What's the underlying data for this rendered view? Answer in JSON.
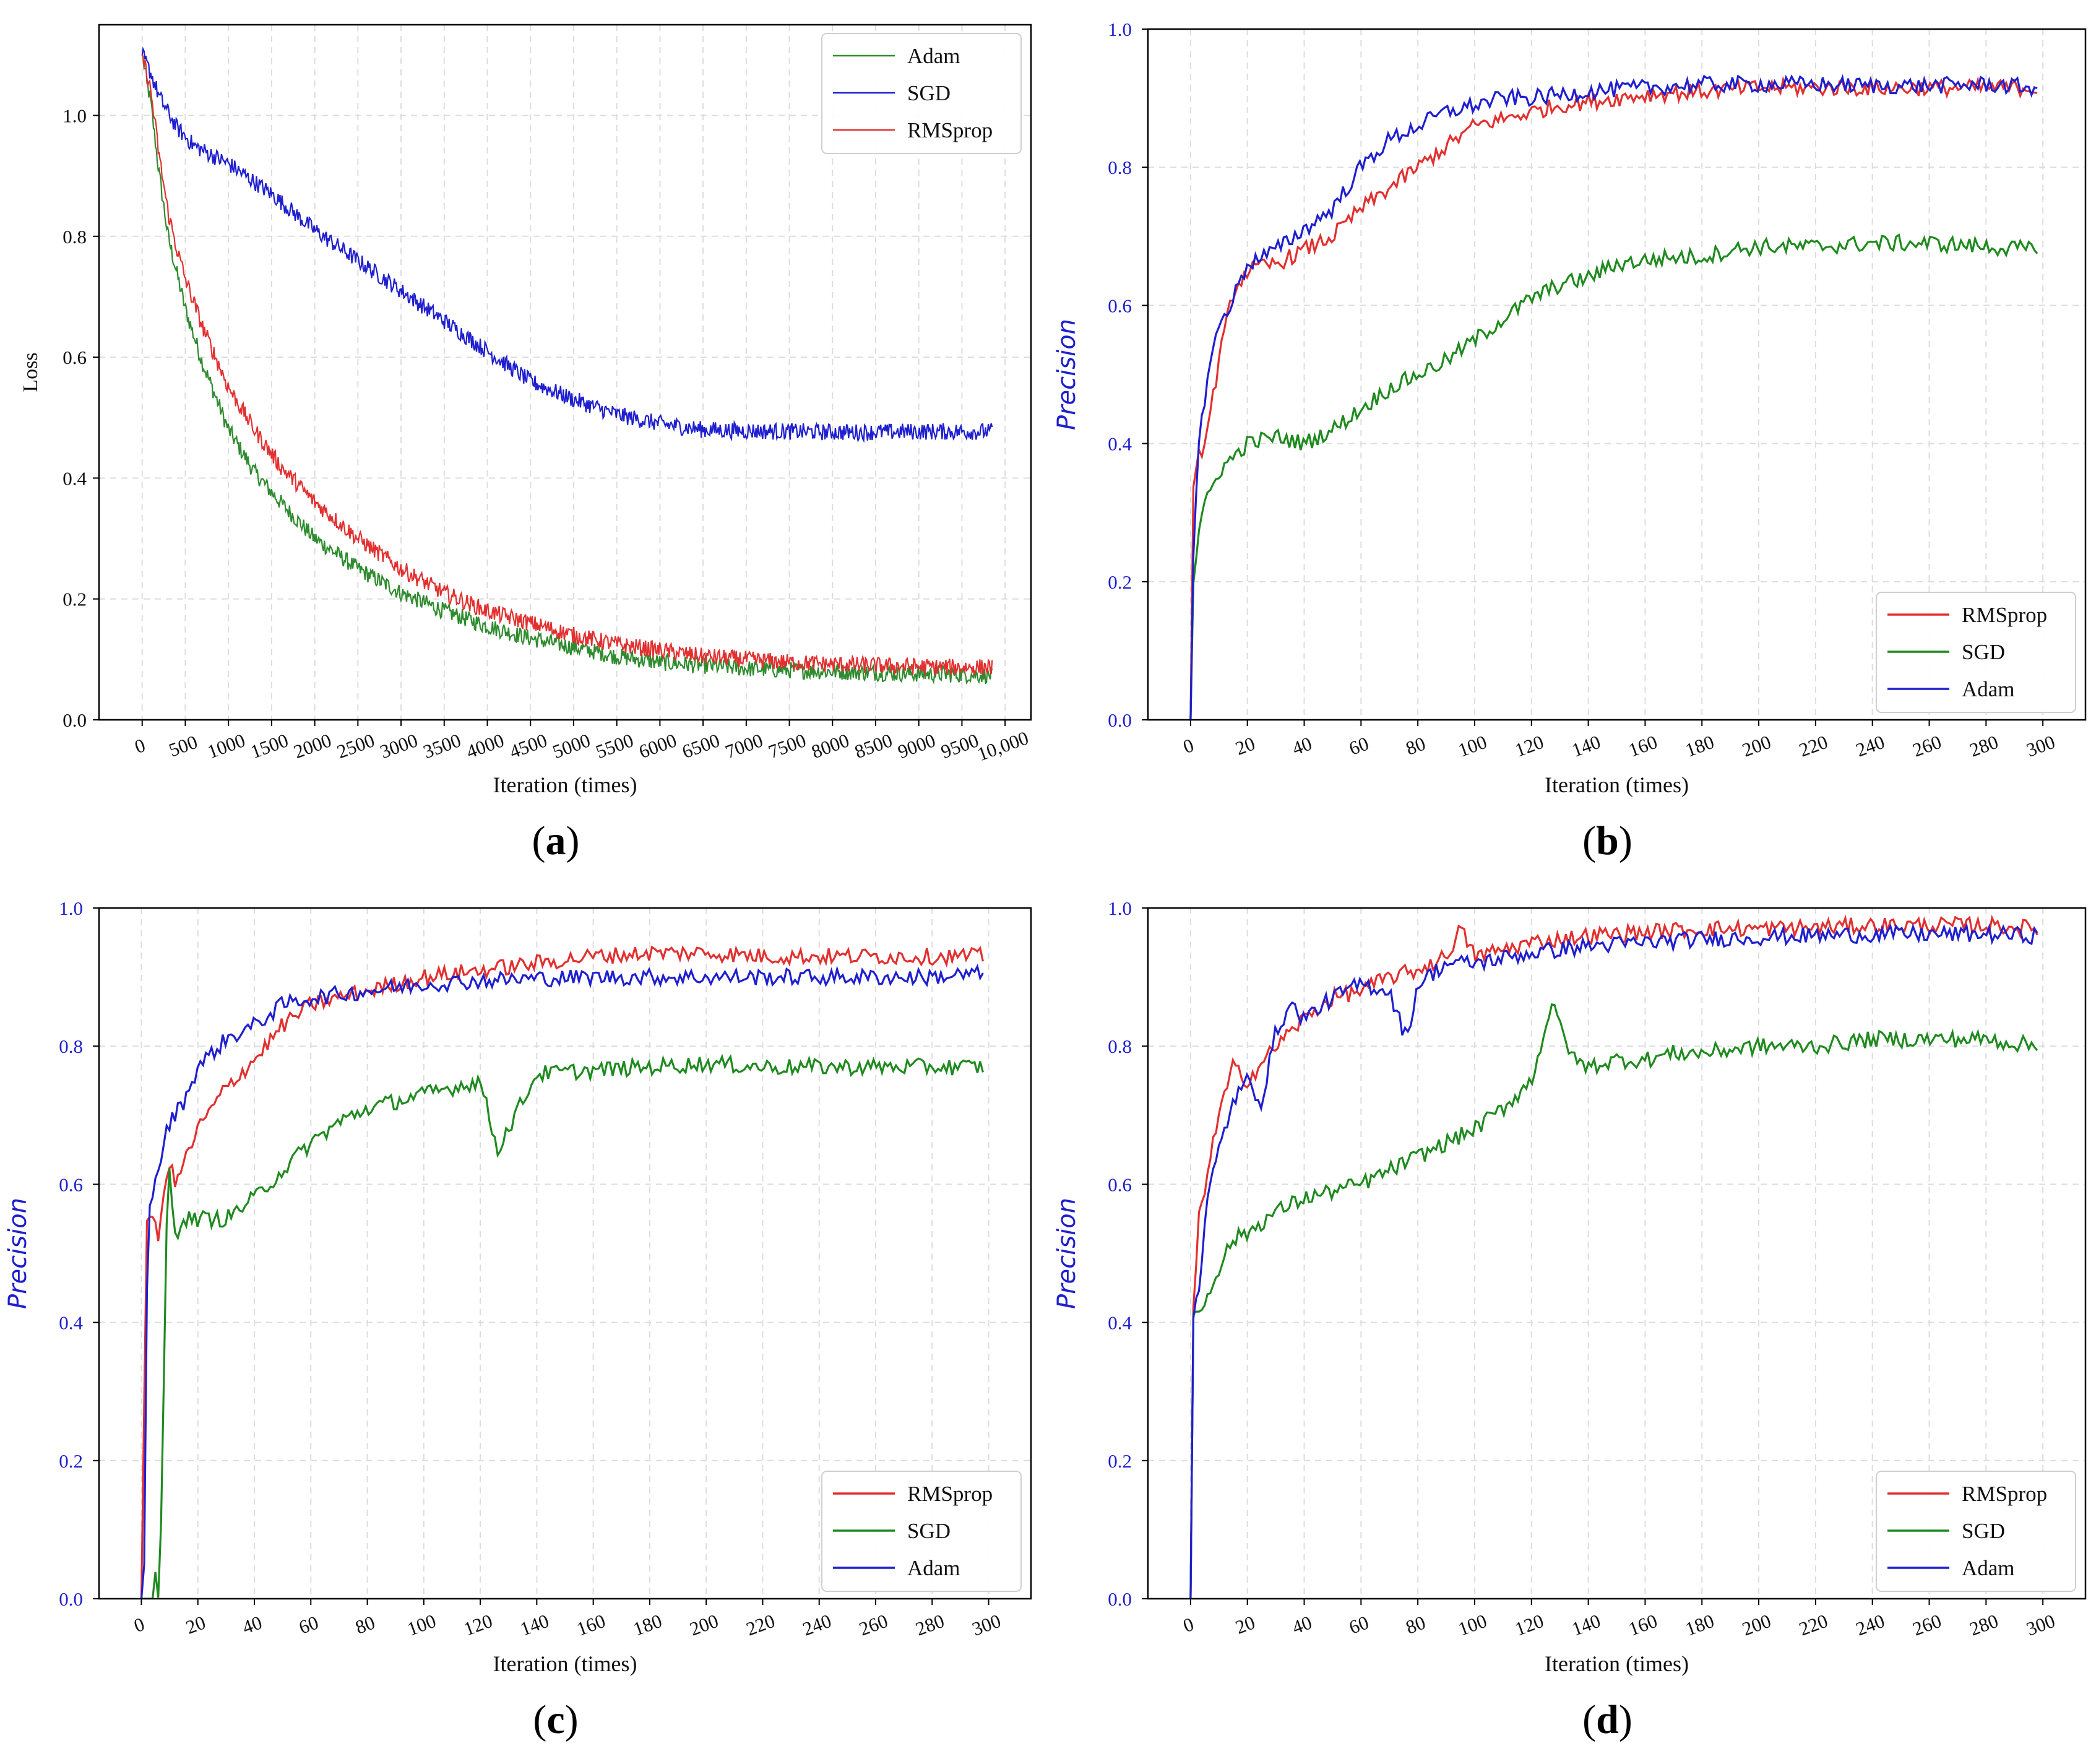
{
  "colors": {
    "adam_a": "#2e8b2e",
    "sgd_a": "#1f1fcf",
    "rmsprop": "#e23030",
    "sgd_green": "#1f8a1f",
    "adam_blue": "#1f1fcf",
    "precision_label": "#1f1fcf",
    "grid": "#dddddd"
  },
  "chart_data": [
    {
      "id": "a",
      "caption_open": "(",
      "caption_letter": "a",
      "caption_close": ")",
      "type": "line",
      "xlabel": "Iteration (times)",
      "ylabel": "Loss",
      "ylabel_style": "plain",
      "xlim": [
        -500,
        10300
      ],
      "ylim": [
        0.0,
        1.15
      ],
      "x_ticks": [
        0,
        500,
        1000,
        1500,
        2000,
        2500,
        3000,
        3500,
        4000,
        4500,
        5000,
        5500,
        6000,
        6500,
        7000,
        7500,
        8000,
        8500,
        9000,
        9500,
        10000
      ],
      "x_tick_labels": [
        "0",
        "500",
        "1000",
        "1500",
        "2000",
        "2500",
        "3000",
        "3500",
        "4000",
        "4500",
        "5000",
        "5500",
        "6000",
        "6500",
        "7000",
        "7500",
        "8000",
        "8500",
        "9000",
        "9500",
        "10,000"
      ],
      "y_ticks": [
        0.0,
        0.2,
        0.4,
        0.6,
        0.8,
        1.0
      ],
      "y_tick_labels": [
        "0.0",
        "0.2",
        "0.4",
        "0.6",
        "0.8",
        "1.0"
      ],
      "legend_position": "top-right",
      "series": [
        {
          "name": "Adam",
          "color_key": "adam_a",
          "x": [
            0,
            100,
            200,
            300,
            400,
            500,
            700,
            1000,
            1300,
            1600,
            2000,
            2500,
            3000,
            3500,
            4000,
            4500,
            5000,
            5500,
            6000,
            6500,
            7000,
            7500,
            8000,
            8500,
            9000,
            9500,
            9850
          ],
          "values": [
            1.1,
            1.02,
            0.9,
            0.8,
            0.74,
            0.68,
            0.59,
            0.48,
            0.41,
            0.36,
            0.3,
            0.25,
            0.21,
            0.18,
            0.155,
            0.135,
            0.12,
            0.105,
            0.095,
            0.09,
            0.085,
            0.082,
            0.08,
            0.078,
            0.076,
            0.075,
            0.074
          ]
        },
        {
          "name": "SGD",
          "color_key": "sgd_a",
          "x": [
            0,
            100,
            200,
            400,
            600,
            1000,
            1500,
            2000,
            2500,
            3000,
            3500,
            4000,
            4500,
            5000,
            5500,
            6000,
            6500,
            7000,
            7500,
            8000,
            8500,
            9000,
            9500,
            9850
          ],
          "values": [
            1.1,
            1.07,
            1.03,
            0.98,
            0.95,
            0.92,
            0.87,
            0.81,
            0.76,
            0.71,
            0.66,
            0.61,
            0.56,
            0.53,
            0.505,
            0.49,
            0.48,
            0.478,
            0.477,
            0.476,
            0.476,
            0.477,
            0.477,
            0.477
          ]
        },
        {
          "name": "RMSprop",
          "color_key": "rmsprop",
          "x": [
            0,
            100,
            200,
            300,
            400,
            500,
            700,
            1000,
            1300,
            1600,
            2000,
            2500,
            3000,
            3500,
            4000,
            4500,
            5000,
            5500,
            6000,
            6500,
            7000,
            7500,
            8000,
            8500,
            9000,
            9500,
            9850
          ],
          "values": [
            1.1,
            1.04,
            0.93,
            0.84,
            0.78,
            0.73,
            0.65,
            0.55,
            0.48,
            0.42,
            0.36,
            0.3,
            0.25,
            0.21,
            0.18,
            0.16,
            0.14,
            0.125,
            0.115,
            0.105,
            0.1,
            0.095,
            0.092,
            0.09,
            0.088,
            0.087,
            0.087
          ]
        }
      ]
    },
    {
      "id": "b",
      "caption_open": "(",
      "caption_letter": "b",
      "caption_close": ")",
      "type": "line",
      "xlabel": "Iteration (times)",
      "ylabel": "Precision",
      "ylabel_style": "blue-italic",
      "xlim": [
        -15,
        315
      ],
      "ylim": [
        0.0,
        1.0
      ],
      "x_ticks": [
        0,
        20,
        40,
        60,
        80,
        100,
        120,
        140,
        160,
        180,
        200,
        220,
        240,
        260,
        280,
        300
      ],
      "x_tick_labels": [
        "0",
        "20",
        "40",
        "60",
        "80",
        "100",
        "120",
        "140",
        "160",
        "180",
        "200",
        "220",
        "240",
        "260",
        "280",
        "300"
      ],
      "y_ticks": [
        0.0,
        0.2,
        0.4,
        0.6,
        0.8,
        1.0
      ],
      "y_tick_labels": [
        "0.0",
        "0.2",
        "0.4",
        "0.6",
        "0.8",
        "1.0"
      ],
      "legend_position": "bottom-right",
      "series": [
        {
          "name": "RMSprop",
          "color_key": "rmsprop",
          "x": [
            0,
            1,
            3,
            6,
            10,
            15,
            20,
            30,
            40,
            50,
            60,
            70,
            80,
            90,
            100,
            110,
            120,
            130,
            140,
            150,
            160,
            180,
            200,
            220,
            240,
            260,
            280,
            298
          ],
          "values": [
            0.0,
            0.33,
            0.38,
            0.42,
            0.52,
            0.62,
            0.65,
            0.66,
            0.68,
            0.7,
            0.74,
            0.77,
            0.8,
            0.83,
            0.86,
            0.87,
            0.88,
            0.89,
            0.895,
            0.9,
            0.905,
            0.91,
            0.915,
            0.915,
            0.915,
            0.915,
            0.915,
            0.915
          ]
        },
        {
          "name": "SGD",
          "color_key": "sgd_green",
          "x": [
            0,
            1,
            3,
            6,
            10,
            15,
            20,
            30,
            40,
            50,
            60,
            70,
            80,
            90,
            100,
            110,
            120,
            130,
            140,
            150,
            160,
            170,
            180,
            190,
            200,
            220,
            240,
            260,
            280,
            298
          ],
          "values": [
            0.0,
            0.2,
            0.28,
            0.32,
            0.36,
            0.38,
            0.4,
            0.41,
            0.4,
            0.42,
            0.45,
            0.48,
            0.5,
            0.52,
            0.55,
            0.58,
            0.61,
            0.63,
            0.64,
            0.66,
            0.665,
            0.67,
            0.67,
            0.68,
            0.685,
            0.685,
            0.69,
            0.69,
            0.685,
            0.68
          ]
        },
        {
          "name": "Adam",
          "color_key": "adam_blue",
          "x": [
            0,
            1,
            3,
            6,
            10,
            15,
            20,
            30,
            40,
            50,
            60,
            70,
            80,
            90,
            100,
            110,
            120,
            130,
            140,
            160,
            180,
            200,
            220,
            240,
            260,
            280,
            298
          ],
          "values": [
            0.0,
            0.25,
            0.4,
            0.5,
            0.57,
            0.61,
            0.66,
            0.68,
            0.71,
            0.74,
            0.8,
            0.84,
            0.86,
            0.88,
            0.89,
            0.9,
            0.9,
            0.905,
            0.91,
            0.915,
            0.92,
            0.92,
            0.92,
            0.918,
            0.918,
            0.92,
            0.915
          ]
        }
      ]
    },
    {
      "id": "c",
      "caption_open": "(",
      "caption_letter": "c",
      "caption_close": ")",
      "type": "line",
      "xlabel": "Iteration (times)",
      "ylabel": "Precision",
      "ylabel_style": "blue-italic",
      "xlim": [
        -15,
        315
      ],
      "ylim": [
        0.0,
        1.0
      ],
      "x_ticks": [
        0,
        20,
        40,
        60,
        80,
        100,
        120,
        140,
        160,
        180,
        200,
        220,
        240,
        260,
        280,
        300
      ],
      "x_tick_labels": [
        "0",
        "20",
        "40",
        "60",
        "80",
        "100",
        "120",
        "140",
        "160",
        "180",
        "200",
        "220",
        "240",
        "260",
        "280",
        "300"
      ],
      "y_ticks": [
        0.0,
        0.2,
        0.4,
        0.6,
        0.8,
        1.0
      ],
      "y_tick_labels": [
        "0.0",
        "0.2",
        "0.4",
        "0.6",
        "0.8",
        "1.0"
      ],
      "legend_position": "bottom-right",
      "series": [
        {
          "name": "RMSprop",
          "color_key": "rmsprop",
          "x": [
            0,
            2,
            4,
            6,
            8,
            10,
            12,
            15,
            20,
            30,
            40,
            50,
            60,
            70,
            80,
            100,
            120,
            140,
            160,
            180,
            200,
            220,
            240,
            260,
            280,
            298
          ],
          "values": [
            0.0,
            0.55,
            0.56,
            0.51,
            0.6,
            0.63,
            0.6,
            0.63,
            0.68,
            0.74,
            0.78,
            0.83,
            0.86,
            0.87,
            0.88,
            0.9,
            0.91,
            0.92,
            0.93,
            0.935,
            0.935,
            0.93,
            0.93,
            0.93,
            0.93,
            0.93
          ]
        },
        {
          "name": "SGD",
          "color_key": "sgd_green",
          "x": [
            0,
            4,
            5,
            6,
            7,
            9,
            10,
            12,
            14,
            20,
            30,
            40,
            50,
            60,
            70,
            80,
            100,
            120,
            126,
            140,
            160,
            180,
            200,
            220,
            240,
            260,
            280,
            298
          ],
          "values": [
            0.0,
            0.0,
            0.04,
            0.0,
            0.1,
            0.55,
            0.62,
            0.52,
            0.55,
            0.55,
            0.55,
            0.58,
            0.62,
            0.66,
            0.69,
            0.71,
            0.73,
            0.75,
            0.65,
            0.76,
            0.765,
            0.77,
            0.775,
            0.77,
            0.77,
            0.77,
            0.77,
            0.77
          ]
        },
        {
          "name": "Adam",
          "color_key": "adam_blue",
          "x": [
            0,
            1,
            2,
            3,
            5,
            8,
            10,
            15,
            20,
            30,
            40,
            50,
            60,
            70,
            80,
            100,
            120,
            140,
            160,
            180,
            200,
            220,
            240,
            260,
            280,
            298
          ],
          "values": [
            0.0,
            0.05,
            0.45,
            0.58,
            0.6,
            0.66,
            0.69,
            0.72,
            0.77,
            0.81,
            0.83,
            0.86,
            0.87,
            0.875,
            0.88,
            0.89,
            0.895,
            0.898,
            0.9,
            0.9,
            0.9,
            0.9,
            0.9,
            0.9,
            0.9,
            0.905
          ]
        }
      ]
    },
    {
      "id": "d",
      "caption_open": "(",
      "caption_letter": "d",
      "caption_close": ")",
      "type": "line",
      "xlabel": "Iteration (times)",
      "ylabel": "Precision",
      "ylabel_style": "blue-italic",
      "xlim": [
        -15,
        315
      ],
      "ylim": [
        0.0,
        1.0
      ],
      "x_ticks": [
        0,
        20,
        40,
        60,
        80,
        100,
        120,
        140,
        160,
        180,
        200,
        220,
        240,
        260,
        280,
        300
      ],
      "x_tick_labels": [
        "0",
        "20",
        "40",
        "60",
        "80",
        "100",
        "120",
        "140",
        "160",
        "180",
        "200",
        "220",
        "240",
        "260",
        "280",
        "300"
      ],
      "y_ticks": [
        0.0,
        0.2,
        0.4,
        0.6,
        0.8,
        1.0
      ],
      "y_tick_labels": [
        "0.0",
        "0.2",
        "0.4",
        "0.6",
        "0.8",
        "1.0"
      ],
      "legend_position": "bottom-right",
      "series": [
        {
          "name": "RMSprop",
          "color_key": "rmsprop",
          "x": [
            0,
            1,
            3,
            6,
            10,
            15,
            20,
            30,
            40,
            50,
            60,
            70,
            80,
            90,
            95,
            100,
            110,
            120,
            140,
            160,
            180,
            200,
            220,
            240,
            260,
            280,
            298
          ],
          "values": [
            0.0,
            0.42,
            0.55,
            0.62,
            0.7,
            0.77,
            0.75,
            0.8,
            0.84,
            0.87,
            0.88,
            0.9,
            0.91,
            0.93,
            0.97,
            0.93,
            0.94,
            0.95,
            0.96,
            0.965,
            0.97,
            0.97,
            0.972,
            0.975,
            0.975,
            0.975,
            0.97
          ]
        },
        {
          "name": "SGD",
          "color_key": "sgd_green",
          "x": [
            0,
            1,
            3,
            6,
            10,
            15,
            20,
            30,
            40,
            50,
            60,
            70,
            80,
            90,
            100,
            110,
            120,
            127,
            135,
            140,
            150,
            160,
            170,
            180,
            200,
            220,
            240,
            260,
            280,
            298
          ],
          "values": [
            0.0,
            0.42,
            0.41,
            0.44,
            0.48,
            0.52,
            0.53,
            0.56,
            0.58,
            0.59,
            0.6,
            0.62,
            0.64,
            0.66,
            0.68,
            0.71,
            0.75,
            0.86,
            0.78,
            0.77,
            0.78,
            0.78,
            0.79,
            0.79,
            0.8,
            0.8,
            0.81,
            0.81,
            0.81,
            0.8
          ]
        },
        {
          "name": "Adam",
          "color_key": "adam_blue",
          "x": [
            0,
            1,
            3,
            6,
            10,
            15,
            20,
            25,
            30,
            35,
            40,
            50,
            60,
            70,
            76,
            80,
            90,
            100,
            120,
            140,
            160,
            180,
            200,
            220,
            240,
            260,
            280,
            298
          ],
          "values": [
            0.0,
            0.42,
            0.45,
            0.58,
            0.65,
            0.72,
            0.75,
            0.72,
            0.82,
            0.86,
            0.84,
            0.87,
            0.89,
            0.88,
            0.81,
            0.89,
            0.92,
            0.92,
            0.935,
            0.945,
            0.95,
            0.955,
            0.958,
            0.96,
            0.962,
            0.962,
            0.962,
            0.96
          ]
        }
      ]
    }
  ]
}
